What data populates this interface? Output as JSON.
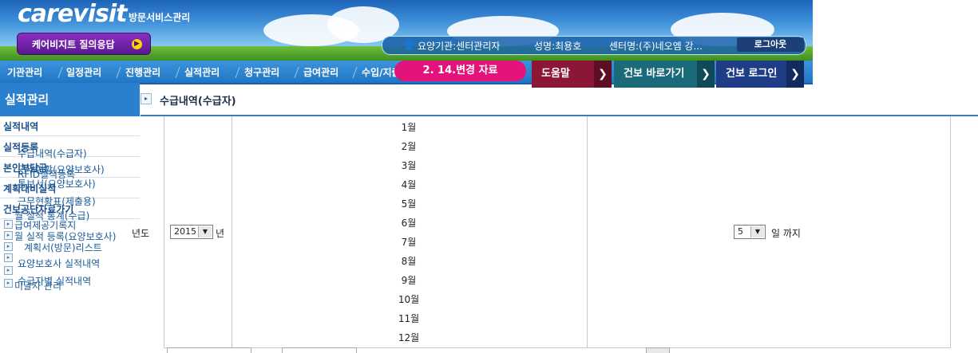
{
  "header": {
    "logo": "carevisit",
    "logo_sub": "방문서비스관리",
    "qa_button": "케어비지트 질의응답",
    "user_bar": {
      "agency": "요양기관:센터관리자",
      "name": "성명:최용호",
      "center": "센터명:(주)네오엠 강...",
      "logout": "로그아웃"
    }
  },
  "nav": {
    "items": [
      "기관관리",
      "일정관리",
      "진행관리",
      "실적관리",
      "청구관리",
      "급여관리",
      "수입/지출"
    ],
    "promo": "2. 14.변경 자료",
    "promo_tail": "도움말",
    "buttons": [
      "",
      "건보 바로가기",
      "건보 로그인"
    ]
  },
  "sidebar": {
    "title": "실적관리",
    "categories": [
      "실적내역",
      "실적등록",
      "본인부담금",
      "계획대비실적",
      "건보공단자료가기"
    ],
    "sub_items": [
      "수급내역(수급자)",
      "RFID실적등록",
      "근무현황(요양보호사)",
      "통보서(요양보호사)",
      "근무현황표(제출용)",
      "월 실적 통계(수급)",
      "급여제공기록지",
      "월 실적 등록(요양보호사)",
      "계획서(방문)리스트",
      "요양보호사 실적내역",
      "수급자별 실적내역",
      "미달자 관리"
    ]
  },
  "content": {
    "page_title": "수급내역(수급자)",
    "year_label": "년도",
    "year_value": "2015",
    "year_suffix": "년",
    "months": [
      "1월",
      "2월",
      "3월",
      "4월",
      "5월",
      "6월",
      "7월",
      "8월",
      "9월",
      "10월",
      "11월",
      "12월"
    ],
    "day_value": "5",
    "day_suffix": "일 까지"
  }
}
